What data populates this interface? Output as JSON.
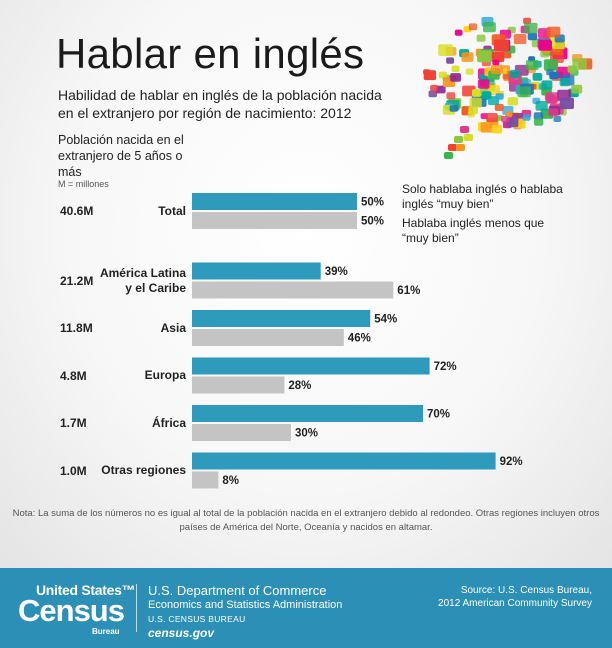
{
  "title": "Hablar en inglés",
  "subtitle": "Habilidad de hablar en inglés de la población nacida en el extranjero por región de nacimiento: 2012",
  "population_label": "Población nacida en el extranjero de 5 años o más",
  "population_unit": "M = millones",
  "legend": {
    "series1": "Solo hablaba inglés o hablaba inglés “muy bien”",
    "series2": "Hablaba inglés menos que “muy bien”"
  },
  "colors": {
    "series1": "#2e9bbd",
    "series2": "#c4c4c4",
    "footer": "#2b8fb6"
  },
  "chart_data": {
    "type": "bar",
    "orientation": "horizontal",
    "categories": [
      "Total",
      "América Latina y el Caribe",
      "Asia",
      "Europa",
      "África",
      "Otras regiones"
    ],
    "category_lines": [
      [
        "Total"
      ],
      [
        "América Latina",
        "y el Caribe"
      ],
      [
        "Asia"
      ],
      [
        "Europa"
      ],
      [
        "África"
      ],
      [
        "Otras regiones"
      ]
    ],
    "population_totals": [
      "40.6M",
      "21.2M",
      "11.8M",
      "4.8M",
      "1.7M",
      "1.0M"
    ],
    "series": [
      {
        "name": "Solo hablaba inglés o hablaba inglés “muy bien”",
        "values": [
          50,
          39,
          54,
          72,
          70,
          92
        ]
      },
      {
        "name": "Hablaba inglés menos que “muy bien”",
        "values": [
          50,
          61,
          46,
          28,
          30,
          8
        ]
      }
    ],
    "value_suffix": "%",
    "xlim": [
      0,
      100
    ],
    "grid": false,
    "legend_position": "top-right"
  },
  "note": "Nota: La suma de los números no es igual al total de la población nacida en el extranjero debido al redondeo. Otras regiones incluyen otros países de América del Norte, Oceanía y nacidos en altamar.",
  "footer": {
    "logo_top": "United States™",
    "logo_main": "Census",
    "logo_bottom": "Bureau",
    "dept_line1": "U.S. Department of Commerce",
    "dept_line2": "Economics and Statistics Administration",
    "dept_line3": "U.S. CENSUS BUREAU",
    "dept_line4": "census.gov",
    "source_line1": "Source: U.S. Census Bureau,",
    "source_line2": "2012 American Community Survey"
  }
}
